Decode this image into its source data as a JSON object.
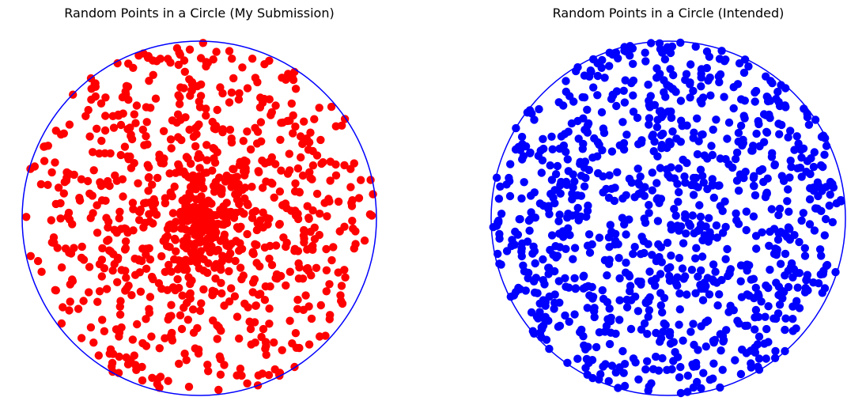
{
  "chart_data": [
    {
      "type": "scatter",
      "title": "Random Points in a Circle (My Submission)",
      "xlabel": "",
      "ylabel": "",
      "axes_visible": false,
      "grid": false,
      "legend": "none",
      "aspect": "equal",
      "xlim": [
        -1.02,
        1.02
      ],
      "ylim": [
        -1.02,
        1.02
      ],
      "boundary_circle": {
        "center": [
          0,
          0
        ],
        "radius": 1,
        "color": "#0000ff"
      },
      "marker_color": "#ff0000",
      "distribution": "r = uniform(0,1) * R (points concentrated near the centre)",
      "series": [
        {
          "seed": 12345,
          "point_count": 1000,
          "radius_sampling": "linear",
          "x": [],
          "y": []
        }
      ]
    },
    {
      "type": "scatter",
      "title": "Random Points in a Circle (Intended)",
      "xlabel": "",
      "ylabel": "",
      "axes_visible": false,
      "grid": false,
      "legend": "none",
      "aspect": "equal",
      "xlim": [
        -1.02,
        1.02
      ],
      "ylim": [
        -1.02,
        1.02
      ],
      "boundary_circle": {
        "center": [
          0,
          0
        ],
        "radius": 1,
        "color": "#0000ff"
      },
      "marker_color": "#0000ff",
      "distribution": "r = sqrt(uniform(0,1)) * R (uniform over the disc area)",
      "series": [
        {
          "seed": 67890,
          "point_count": 1000,
          "radius_sampling": "sqrt",
          "x": [],
          "y": []
        }
      ]
    }
  ]
}
